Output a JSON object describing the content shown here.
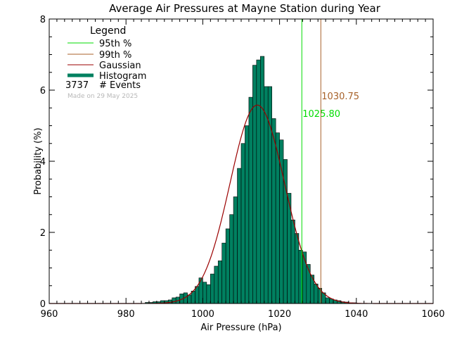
{
  "chart_data": {
    "type": "bar",
    "title": "Average Air Pressures at Mayne Station during Year",
    "xlabel": "Air Pressure (hPa)",
    "ylabel": "Probability (%)",
    "xlim": [
      960,
      1060
    ],
    "ylim": [
      0,
      8
    ],
    "x_ticks": [
      "960",
      "980",
      "1000",
      "1020",
      "1040",
      "1060"
    ],
    "y_ticks": [
      "0",
      "2",
      "4",
      "6",
      "8"
    ],
    "bin_width": 1,
    "histogram": {
      "x": [
        985,
        986,
        987,
        988,
        989,
        990,
        991,
        992,
        993,
        994,
        995,
        996,
        997,
        998,
        999,
        1000,
        1001,
        1002,
        1003,
        1004,
        1005,
        1006,
        1007,
        1008,
        1009,
        1010,
        1011,
        1012,
        1013,
        1014,
        1015,
        1016,
        1017,
        1018,
        1019,
        1020,
        1021,
        1022,
        1023,
        1024,
        1025,
        1026,
        1027,
        1028,
        1029,
        1030,
        1031,
        1032,
        1033,
        1034,
        1035,
        1036,
        1037,
        1038,
        1039
      ],
      "values": [
        0.03,
        0.03,
        0.05,
        0.05,
        0.08,
        0.08,
        0.1,
        0.16,
        0.18,
        0.27,
        0.3,
        0.24,
        0.35,
        0.48,
        0.72,
        0.6,
        0.53,
        0.83,
        1.05,
        1.2,
        1.7,
        2.1,
        2.5,
        3.0,
        3.8,
        4.5,
        5.0,
        5.8,
        6.7,
        6.85,
        6.95,
        6.1,
        6.1,
        5.2,
        4.8,
        4.6,
        4.05,
        3.1,
        2.35,
        1.97,
        1.5,
        1.45,
        1.1,
        0.8,
        0.55,
        0.43,
        0.3,
        0.16,
        0.13,
        0.1,
        0.08,
        0.05,
        0.04,
        0.02,
        0.02
      ]
    },
    "gaussian": {
      "mean": 1014.2,
      "sigma": 7.1,
      "peak": 5.58
    },
    "percentiles": [
      {
        "name": "95th %",
        "value": 1025.8,
        "label": "1025.80",
        "color": "#00dd00"
      },
      {
        "name": "99th %",
        "value": 1030.75,
        "label": "1030.75",
        "color": "#a8622a"
      }
    ],
    "legend": {
      "title": "Legend",
      "entries": [
        {
          "label": "95th %",
          "color": "#00dd00",
          "style": "thin"
        },
        {
          "label": "99th %",
          "color": "#a8622a",
          "style": "thin"
        },
        {
          "label": "Gaussian",
          "color": "#9b0000",
          "style": "thin"
        },
        {
          "label": "Histogram",
          "color": "#008060",
          "style": "thick"
        }
      ],
      "events_count": "3737",
      "events_label": "# Events",
      "made_on": "Made on 29 May 2025",
      "placement": "top-left"
    },
    "colors": {
      "histogram_fill": "#008060",
      "histogram_edge": "#000000",
      "gaussian": "#9b0000",
      "made_on": "#b8b8b8"
    }
  }
}
